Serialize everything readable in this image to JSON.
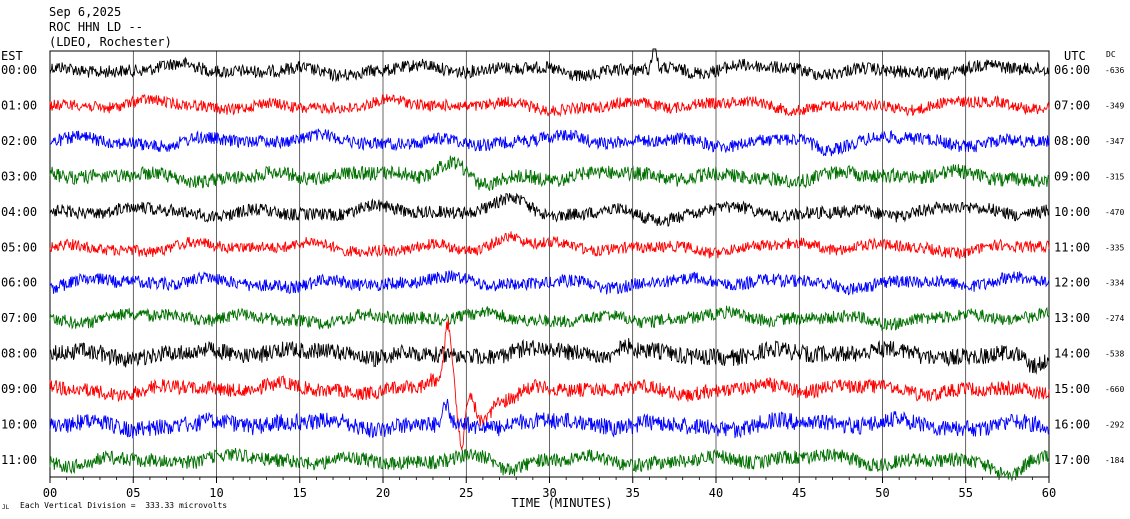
{
  "header": {
    "date": "Sep 6,2025",
    "station": "ROC HHN LD --",
    "network": "(LDEO, Rochester)"
  },
  "left_axis_label": "EST",
  "right_axis_label": "UTC",
  "dc_label": "DC",
  "footer": {
    "scale_note": "Each Vertical Division =  333.33 microvolts",
    "scale_mark": "JL"
  },
  "colors": {
    "black": "#000000",
    "red": "#ff0000",
    "blue": "#0000ff",
    "green": "#007000",
    "grid": "#000000"
  },
  "chart_data": {
    "type": "line",
    "title": "",
    "xlabel": "TIME (MINUTES)",
    "ylabel": "",
    "xlim": [
      0,
      60
    ],
    "x_ticks": [
      "00",
      "05",
      "10",
      "15",
      "20",
      "25",
      "30",
      "35",
      "40",
      "45",
      "50",
      "55",
      "60"
    ],
    "grid": "vertical every 5 minutes",
    "rows": [
      {
        "est": "00:00",
        "utc": "06:00",
        "dc": "-636",
        "color": "black",
        "noise": 0.9,
        "waves": [
          [
            36.3,
            0.15,
            3.0
          ]
        ]
      },
      {
        "est": "01:00",
        "utc": "07:00",
        "dc": "-349",
        "color": "red",
        "noise": 0.8,
        "waves": []
      },
      {
        "est": "02:00",
        "utc": "08:00",
        "dc": "-347",
        "color": "blue",
        "noise": 0.9,
        "waves": [
          [
            46.5,
            1.2,
            -0.8
          ]
        ]
      },
      {
        "est": "03:00",
        "utc": "09:00",
        "dc": "-315",
        "color": "green",
        "noise": 1.0,
        "waves": [
          [
            24.0,
            1.2,
            1.5
          ],
          [
            26.0,
            1.0,
            -0.8
          ]
        ]
      },
      {
        "est": "04:00",
        "utc": "10:00",
        "dc": "-470",
        "color": "black",
        "noise": 0.9,
        "waves": [
          [
            28.0,
            1.2,
            1.2
          ],
          [
            37.0,
            2.0,
            -0.6
          ]
        ]
      },
      {
        "est": "05:00",
        "utc": "11:00",
        "dc": "-335",
        "color": "red",
        "noise": 0.8,
        "waves": [
          [
            27.5,
            1.0,
            0.8
          ]
        ]
      },
      {
        "est": "06:00",
        "utc": "12:00",
        "dc": "-334",
        "color": "blue",
        "noise": 0.9,
        "waves": []
      },
      {
        "est": "07:00",
        "utc": "13:00",
        "dc": "-274",
        "color": "green",
        "noise": 0.9,
        "waves": []
      },
      {
        "est": "08:00",
        "utc": "14:00",
        "dc": "-538",
        "color": "black",
        "noise": 1.2,
        "waves": [
          [
            34.5,
            0.6,
            0.8
          ],
          [
            59.0,
            0.8,
            -1.0
          ]
        ]
      },
      {
        "est": "09:00",
        "utc": "15:00",
        "dc": "-660",
        "color": "red",
        "noise": 1.0,
        "waves": [
          [
            23.0,
            0.5,
            1.0
          ],
          [
            23.9,
            0.35,
            5.5
          ],
          [
            24.7,
            0.3,
            -4.5
          ],
          [
            26.0,
            0.6,
            -2.5
          ],
          [
            27.5,
            1.2,
            -1.2
          ]
        ]
      },
      {
        "est": "10:00",
        "utc": "16:00",
        "dc": "-292",
        "color": "blue",
        "noise": 1.2,
        "waves": [
          [
            23.8,
            0.3,
            1.6
          ]
        ]
      },
      {
        "est": "11:00",
        "utc": "17:00",
        "dc": "-184",
        "color": "green",
        "noise": 1.0,
        "waves": [
          [
            27.5,
            1.2,
            -0.8
          ],
          [
            57.8,
            1.2,
            -1.0
          ]
        ]
      }
    ]
  }
}
